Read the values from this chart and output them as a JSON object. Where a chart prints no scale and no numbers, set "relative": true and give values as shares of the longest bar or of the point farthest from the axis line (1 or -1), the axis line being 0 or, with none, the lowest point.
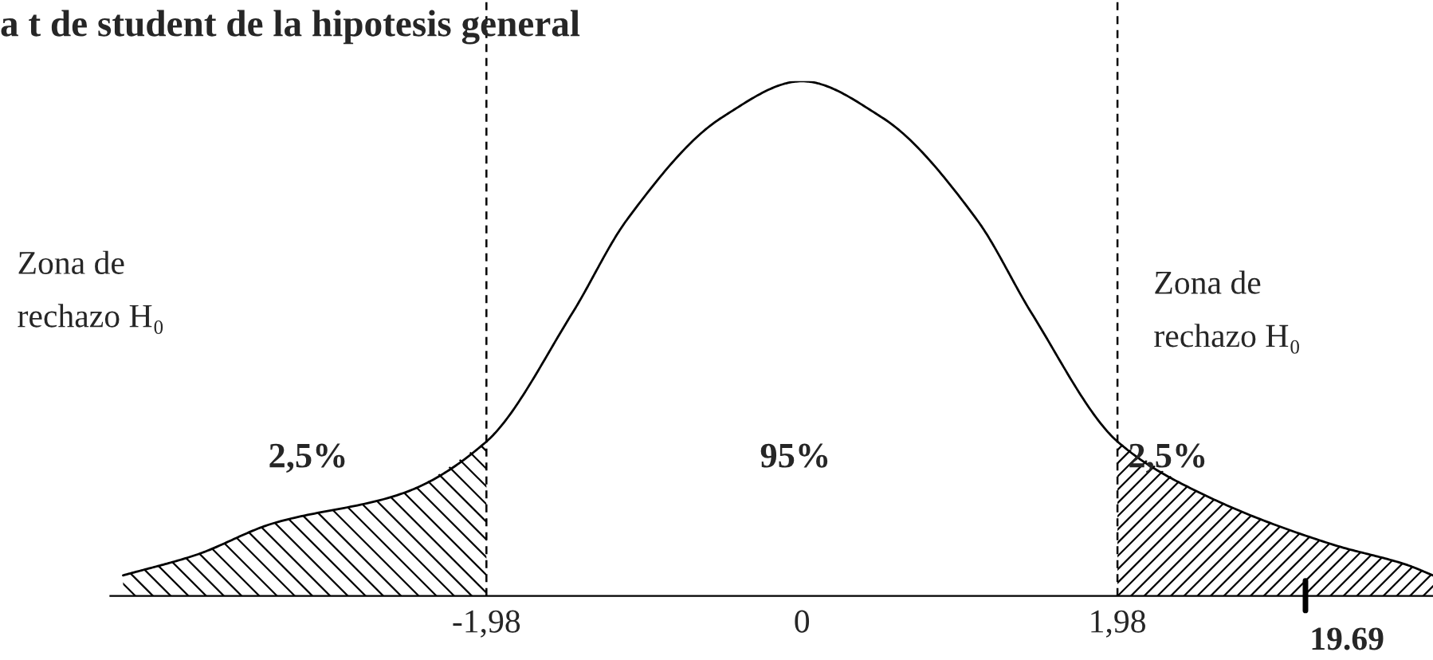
{
  "chart_data": {
    "type": "line",
    "title": "a t de student de la hipotesis general",
    "relative": true,
    "xlim": [
      -4.34,
      3.96
    ],
    "xticks": [
      {
        "value": -1.98,
        "label": "-1,98"
      },
      0,
      {
        "value": 1.98,
        "label": "1,98"
      }
    ],
    "series": [
      {
        "color": "#000000",
        "x": [
          -4.26,
          -3.8,
          -3.33,
          -2.5,
          -1.98,
          -1.44,
          -1.1,
          -0.5,
          0,
          0.5,
          1.1,
          1.44,
          1.98,
          2.5,
          3.33,
          3.8,
          3.96
        ],
        "values": [
          0.04,
          0.08,
          0.14,
          0.2,
          0.3,
          0.55,
          0.73,
          0.93,
          1,
          0.93,
          0.73,
          0.55,
          0.3,
          0.2,
          0.1,
          0.06,
          0.04
        ]
      },
      {
        "type": "area",
        "color": "#000000",
        "x": [
          -4.26,
          -3.8,
          -3.33,
          -2.5,
          -1.98
        ],
        "values": [
          0.04,
          0.08,
          0.14,
          0.2,
          0.3
        ]
      },
      {
        "type": "area",
        "color": "#000000",
        "x": [
          1.98,
          2.5,
          3.33,
          3.8,
          3.96
        ],
        "values": [
          0.3,
          0.2,
          0.1,
          0.06,
          0.04
        ]
      }
    ],
    "ref_lines": [
      {
        "axis": "x",
        "value": -1.98,
        "line_style": "dashed"
      },
      {
        "axis": "x",
        "value": 1.98,
        "line_style": "dashed"
      }
    ],
    "annotations": [
      "2,5%",
      "95%",
      "2,5%",
      "Zona de rechazo H₀",
      "Zona de rechazo H₀",
      "19.69"
    ],
    "grid": false,
    "legend": false
  }
}
